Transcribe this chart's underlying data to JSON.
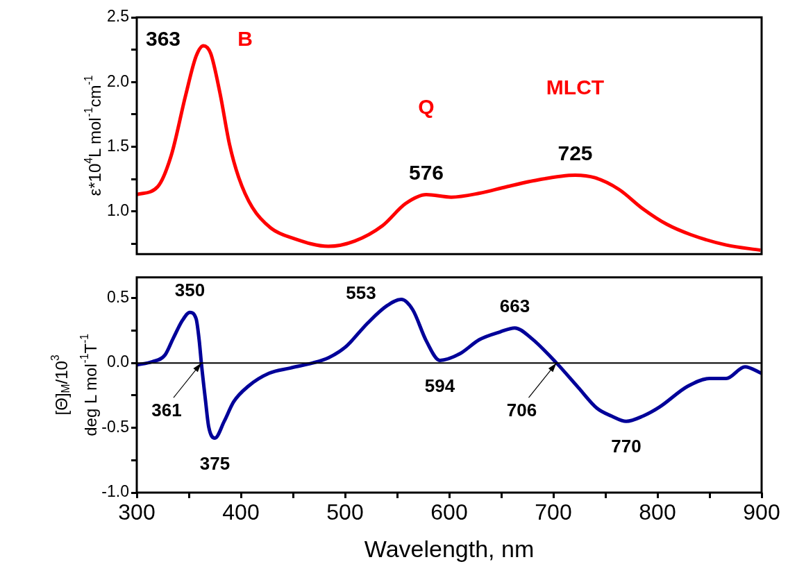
{
  "chart_data": [
    {
      "type": "line",
      "ylabel": "ε*10$^{4}$L mol$^{-1}$cm$^{-1}$",
      "xlim": [
        300,
        900
      ],
      "ylim": [
        0.67,
        2.5
      ],
      "yticks": [
        {
          "value": 0.75,
          "label": null
        },
        {
          "value": 1,
          "label": "1.0"
        },
        {
          "value": 1.25,
          "label": null
        },
        1.5,
        {
          "value": 1.75,
          "label": null
        },
        {
          "value": 2,
          "label": "2.0"
        },
        {
          "value": 2.25,
          "label": null
        },
        2.5
      ],
      "tick_labels": "y",
      "series": [
        {
          "color": "#ff0000",
          "x": [
            300,
            320,
            333,
            347,
            357,
            364,
            371,
            380,
            389,
            398,
            411,
            429,
            451,
            484,
            509,
            536,
            558,
            578,
            602,
            629,
            655,
            683,
            721,
            740,
            763,
            786,
            809,
            832,
            866,
            899
          ],
          "values": [
            1.13,
            1.19,
            1.43,
            1.9,
            2.2,
            2.28,
            2.22,
            1.91,
            1.52,
            1.26,
            1.03,
            0.87,
            0.79,
            0.73,
            0.77,
            0.89,
            1.06,
            1.13,
            1.11,
            1.14,
            1.19,
            1.24,
            1.28,
            1.26,
            1.17,
            1.02,
            0.9,
            0.82,
            0.74,
            0.7
          ]
        }
      ],
      "annotations": [
        {
          "text": "363",
          "x": 364,
          "y": 2.28
        },
        "B",
        {
          "text": "576",
          "x": 578,
          "y": 1.13
        },
        "Q",
        {
          "text": "725",
          "x": 721,
          "y": 1.28
        },
        "MLCT"
      ]
    },
    {
      "type": "line",
      "xlabel": "Wavelength, nm",
      "ylabel": "[Θ]$_{M}$/10$^{3}$\ndeg L mol$^{-1}$T$^{-1}$",
      "xlim": [
        300,
        900
      ],
      "xticks": [
        300,
        {
          "value": 350,
          "label": null
        },
        400,
        {
          "value": 450,
          "label": null
        },
        500,
        {
          "value": 550,
          "label": null
        },
        600,
        {
          "value": 650,
          "label": null
        },
        700,
        {
          "value": 750,
          "label": null
        },
        800,
        {
          "value": 850,
          "label": null
        },
        900
      ],
      "ylim": [
        -1,
        0.66
      ],
      "yticks": [
        {
          "value": -1,
          "label": "-1.0"
        },
        {
          "value": -0.75,
          "label": null
        },
        -0.5,
        {
          "value": -0.25,
          "label": null
        },
        {
          "value": 0,
          "label": "0.0"
        },
        {
          "value": 0.25,
          "label": null
        },
        0.5
      ],
      "ref_lines": [
        {
          "axis": "y",
          "value": 0,
          "color": "#000000"
        }
      ],
      "series": [
        {
          "color": "#000099",
          "x": [
            300,
            315,
            327,
            335,
            344,
            351,
            357,
            360,
            362,
            366,
            369,
            375,
            384,
            393,
            407,
            427,
            447,
            469,
            484,
            500,
            522,
            540,
            554,
            565,
            578,
            591,
            610,
            629,
            649,
            663,
            679,
            703,
            724,
            742,
            756,
            770,
            786,
            802,
            829,
            850,
            866,
            884,
            900
          ],
          "values": [
            -0.015,
            0.01,
            0.06,
            0.19,
            0.33,
            0.39,
            0.34,
            0.17,
            0,
            -0.29,
            -0.49,
            -0.58,
            -0.45,
            -0.3,
            -0.18,
            -0.08,
            -0.04,
            0,
            0.04,
            0.12,
            0.31,
            0.44,
            0.49,
            0.41,
            0.17,
            0.02,
            0.07,
            0.18,
            0.24,
            0.27,
            0.19,
            0,
            -0.19,
            -0.35,
            -0.41,
            -0.45,
            -0.41,
            -0.34,
            -0.18,
            -0.12,
            -0.12,
            -0.03,
            -0.08
          ]
        }
      ],
      "annotations": [
        {
          "text": "350",
          "x": 351,
          "y": 0.39
        },
        {
          "text": "553",
          "x": 554,
          "y": 0.49
        },
        {
          "text": "361",
          "x": 362,
          "y": 0
        },
        {
          "text": "375",
          "x": 375,
          "y": -0.58
        },
        {
          "text": "594",
          "x": 591,
          "y": 0.02
        },
        {
          "text": "663",
          "x": 663,
          "y": 0.27
        },
        {
          "text": "706",
          "x": 703,
          "y": 0
        },
        {
          "text": "770",
          "x": 770,
          "y": -0.45
        }
      ]
    }
  ]
}
